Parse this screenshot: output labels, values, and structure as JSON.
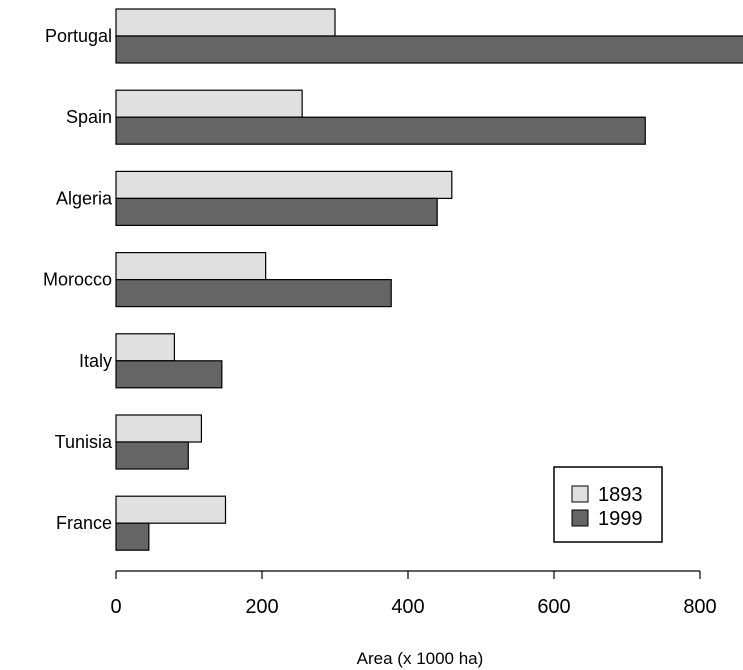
{
  "chart_data": {
    "type": "bar",
    "orientation": "horizontal",
    "categories": [
      "Portugal",
      "Spain",
      "Algeria",
      "Morocco",
      "Italy",
      "Tunisia",
      "France"
    ],
    "series": [
      {
        "name": "1893",
        "color": "#e0e0e0",
        "values": [
          300,
          255,
          460,
          205,
          80,
          117,
          150
        ]
      },
      {
        "name": "1999",
        "color": "#656565",
        "values": [
          860,
          725,
          440,
          377,
          145,
          99,
          45
        ]
      }
    ],
    "xlabel": "Area (x 1000 ha)",
    "ylabel": "",
    "title": "",
    "xlim": [
      0,
      860
    ],
    "xticks": [
      0,
      200,
      400,
      600,
      800
    ],
    "grid": false,
    "legend_position": "bottom-right"
  }
}
